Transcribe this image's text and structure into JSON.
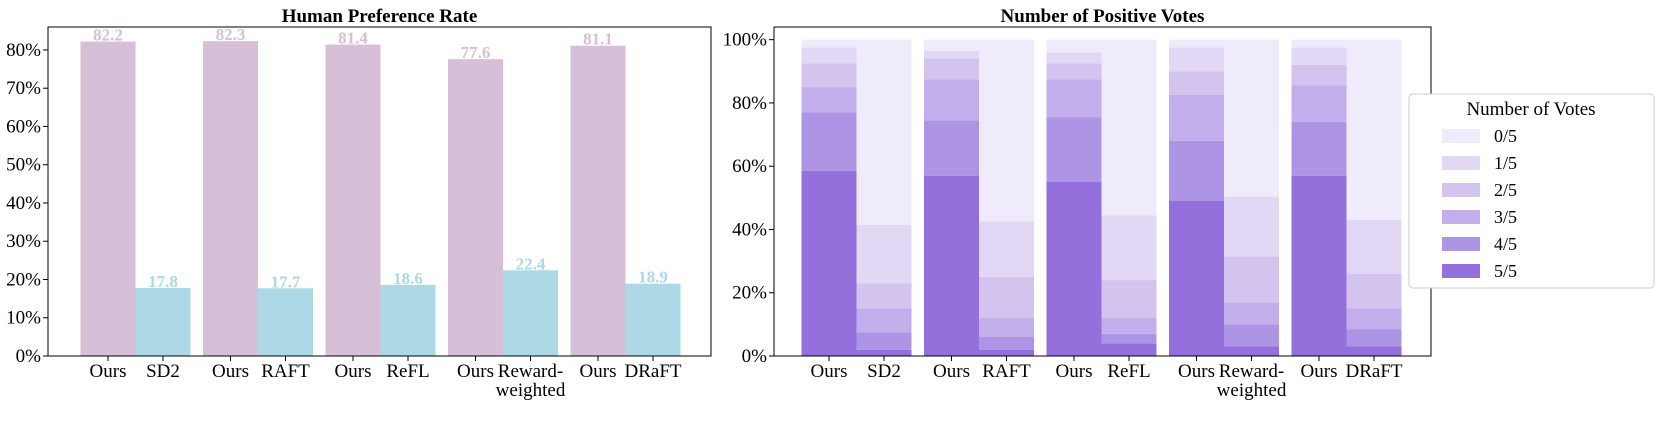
{
  "chart_data": [
    {
      "type": "bar",
      "title": "Human Preference Rate",
      "xlabel": "",
      "ylabel": "",
      "ylim": [
        0,
        86
      ],
      "yticks": [
        "0%",
        "10%",
        "20%",
        "30%",
        "40%",
        "50%",
        "60%",
        "70%",
        "80%"
      ],
      "colors": {
        "ours": "#d8bfd8",
        "baseline": "#add8e6"
      },
      "groups": [
        {
          "ours_label": "Ours",
          "ours_value": 82.2,
          "ours_text": "82.2",
          "baseline_label": [
            "SD2"
          ],
          "baseline_value": 17.8,
          "baseline_text": "17.8"
        },
        {
          "ours_label": "Ours",
          "ours_value": 82.3,
          "ours_text": "82.3",
          "baseline_label": [
            "RAFT"
          ],
          "baseline_value": 17.7,
          "baseline_text": "17.7"
        },
        {
          "ours_label": "Ours",
          "ours_value": 81.4,
          "ours_text": "81.4",
          "baseline_label": [
            "ReFL"
          ],
          "baseline_value": 18.6,
          "baseline_text": "18.6"
        },
        {
          "ours_label": "Ours",
          "ours_value": 77.6,
          "ours_text": "77.6",
          "baseline_label": [
            "Reward-",
            "weighted"
          ],
          "baseline_value": 22.4,
          "baseline_text": "22.4"
        },
        {
          "ours_label": "Ours",
          "ours_value": 81.1,
          "ours_text": "81.1",
          "baseline_label": [
            "DRaFT"
          ],
          "baseline_value": 18.9,
          "baseline_text": "18.9"
        }
      ]
    },
    {
      "type": "bar",
      "stacked": true,
      "title": "Number of Positive Votes",
      "xlabel": "",
      "ylabel": "",
      "ylim": [
        0,
        104
      ],
      "yticks": [
        "0%",
        "20%",
        "40%",
        "60%",
        "80%",
        "100%"
      ],
      "categories": [
        "Ours",
        "SD2",
        "Ours",
        "RAFT",
        "Ours",
        "ReFL",
        "Ours",
        "Reward-weighted",
        "Ours",
        "DRaFT"
      ],
      "category_lines": [
        [
          "Ours"
        ],
        [
          "SD2"
        ],
        [
          "Ours"
        ],
        [
          "RAFT"
        ],
        [
          "Ours"
        ],
        [
          "ReFL"
        ],
        [
          "Ours"
        ],
        [
          "Reward-",
          "weighted"
        ],
        [
          "Ours"
        ],
        [
          "DRaFT"
        ]
      ],
      "legend": {
        "title": "Number of Votes",
        "position": "right"
      },
      "series": [
        {
          "name": "5/5",
          "color": "#9370db",
          "values": [
            58.5,
            2.0,
            57.0,
            2.0,
            55.0,
            4.0,
            49.0,
            3.0,
            57.0,
            3.0
          ]
        },
        {
          "name": "4/5",
          "color": "#ae94e4",
          "values": [
            18.5,
            5.5,
            17.5,
            4.0,
            20.5,
            3.0,
            19.0,
            7.0,
            17.0,
            5.5
          ]
        },
        {
          "name": "3/5",
          "color": "#c2aeea",
          "values": [
            8.0,
            7.5,
            13.0,
            6.0,
            12.0,
            5.0,
            14.5,
            7.0,
            11.5,
            6.5
          ]
        },
        {
          "name": "2/5",
          "color": "#d2c3ef",
          "values": [
            7.5,
            8.0,
            6.5,
            13.0,
            5.0,
            12.0,
            7.5,
            14.5,
            6.5,
            11.0
          ]
        },
        {
          "name": "1/5",
          "color": "#e2d8f5",
          "values": [
            5.0,
            18.5,
            2.5,
            17.5,
            3.5,
            20.5,
            7.5,
            19.0,
            5.5,
            17.0
          ]
        },
        {
          "name": "0/5",
          "color": "#f0ebfa",
          "values": [
            2.5,
            58.5,
            3.5,
            57.5,
            4.0,
            55.5,
            2.5,
            49.5,
            2.5,
            57.0
          ]
        }
      ]
    }
  ]
}
